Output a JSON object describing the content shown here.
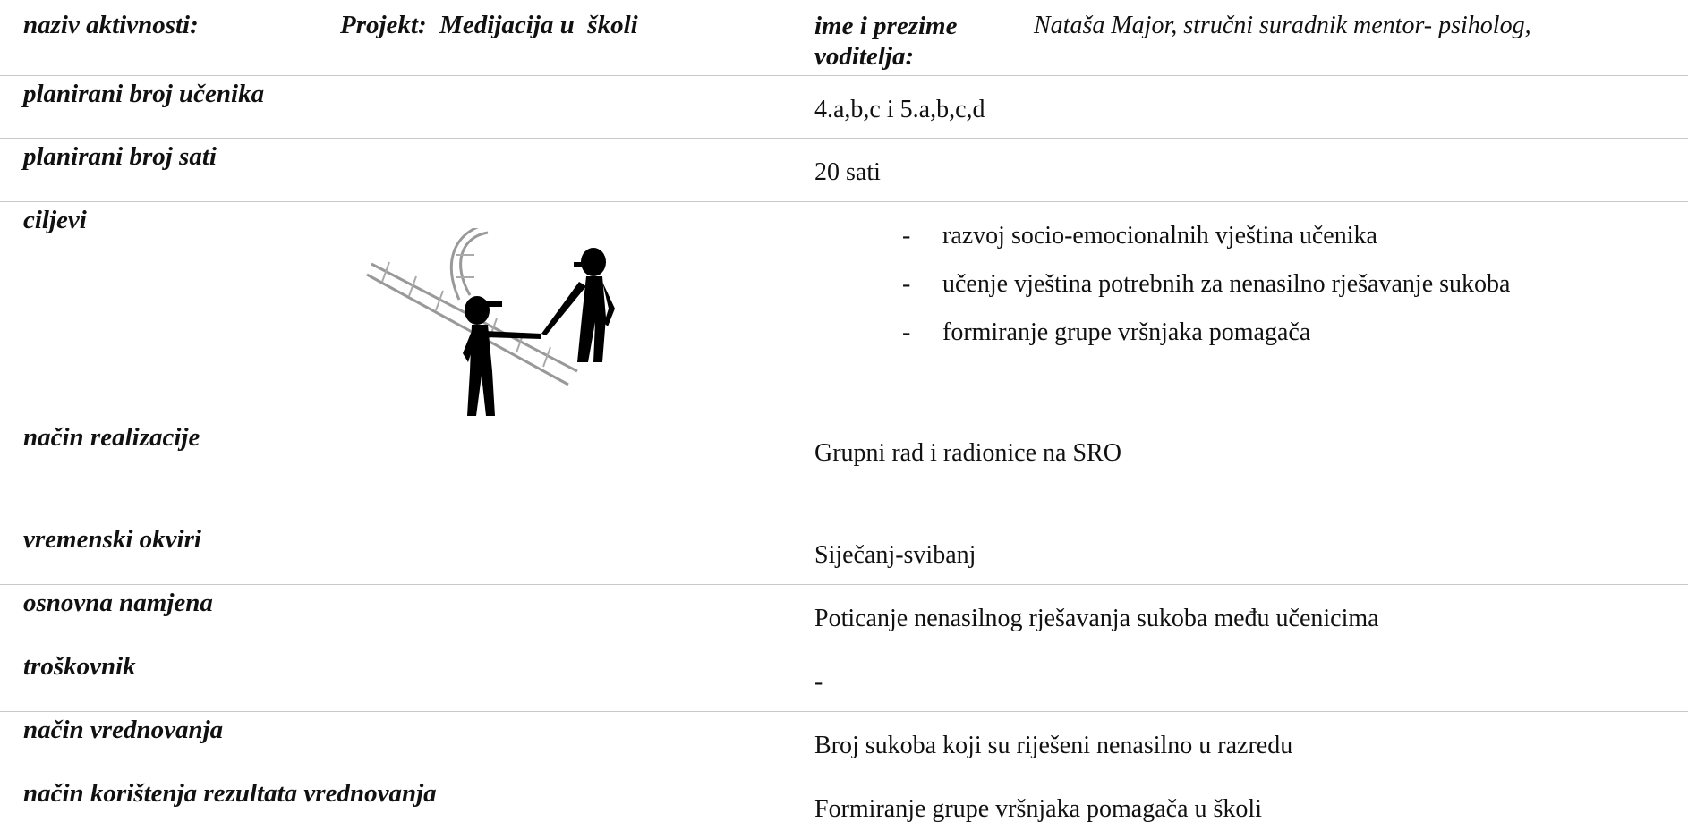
{
  "header": {
    "label": "naziv aktivnosti:",
    "project": "Projekt:  Medijacija u  školi",
    "leader_label": "ime i prezime voditelja:",
    "leader": "Nataša Major, stručni suradnik mentor- psiholog,"
  },
  "rows": [
    {
      "label": "planirani broj učenika",
      "value": "4.a,b,c i 5.a,b,c,d"
    },
    {
      "label": "planirani broj sati",
      "value": "20 sati"
    },
    {
      "label": "ciljevi",
      "items": [
        "razvoj socio-emocionalnih vještina učenika",
        "učenje vještina potrebnih za nenasilno rješavanje sukoba",
        "formiranje grupe vršnjaka pomagača"
      ]
    },
    {
      "label": "način realizacije",
      "value": "Grupni rad i radionice na SRO"
    },
    {
      "label": "vremenski okviri",
      "value": "Siječanj-svibanj"
    },
    {
      "label": "osnovna namjena",
      "value": "Poticanje nenasilnog rješavanja sukoba među učenicima"
    },
    {
      "label": "troškovnik",
      "value": "-"
    },
    {
      "label": "način vrednovanja",
      "value": "Broj sukoba koji su riješeni nenasilno u razredu"
    },
    {
      "label": "način korištenja rezultata vrednovanja",
      "value": "Formiranje grupe vršnjaka pomagača u školi"
    }
  ]
}
